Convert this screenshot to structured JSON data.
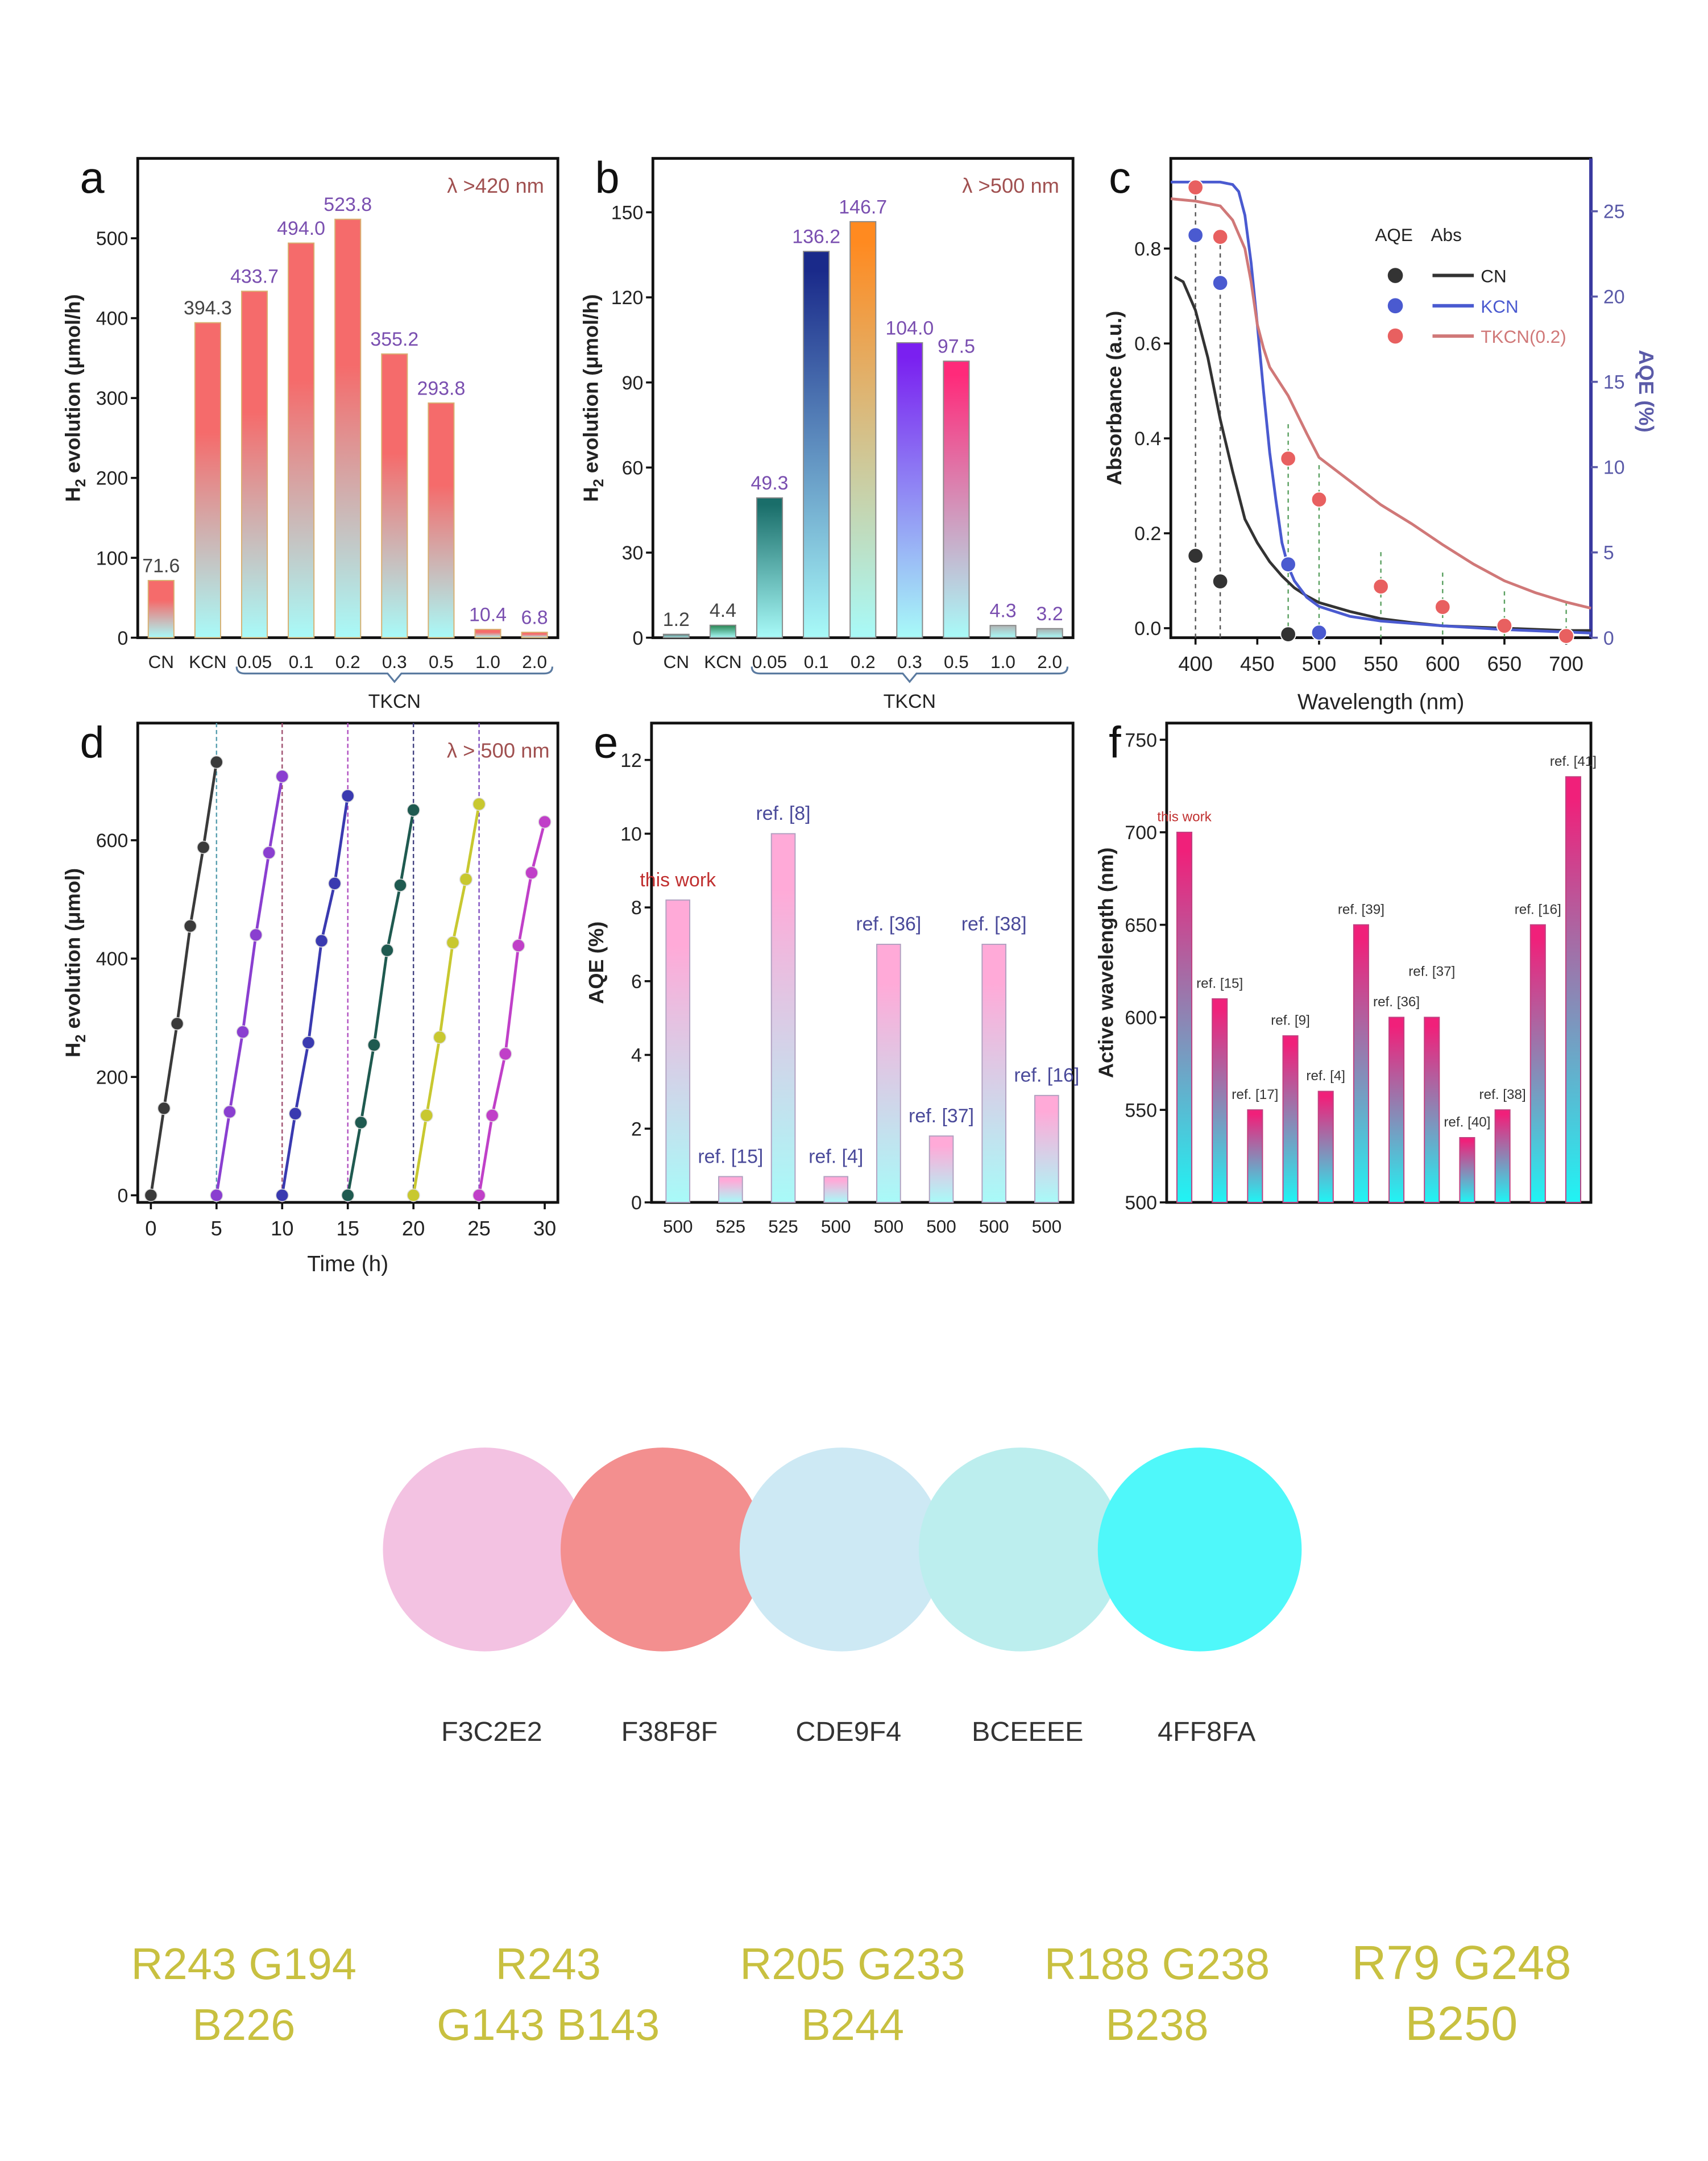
{
  "chart_data": [
    {
      "panel": "a",
      "type": "bar",
      "annotation": "λ >420 nm",
      "categories": [
        "CN",
        "KCN",
        "0.05",
        "0.1",
        "0.2",
        "0.3",
        "0.5",
        "1.0",
        "2.0"
      ],
      "values": [
        71.6,
        394.3,
        433.7,
        494.0,
        523.8,
        355.2,
        293.8,
        10.4,
        6.8
      ],
      "data_labels": [
        "71.6",
        "394.3",
        "433.7",
        "494.0",
        "523.8",
        "355.2",
        "293.8",
        "10.4",
        "6.8"
      ],
      "group_label": "TKCN",
      "ylabel": {
        "main": "H",
        "sub": "2",
        "rest": " evolution (μmol/h)"
      },
      "ylim": [
        0,
        600
      ],
      "yticks": [
        0,
        100,
        200,
        300,
        400,
        500
      ],
      "ytick_labels": [
        "0",
        "100",
        "200",
        "300",
        "400",
        "500"
      ],
      "bar_top_color": "#F56B6B",
      "bar_bottom_color": "#A8FAF8"
    },
    {
      "panel": "b",
      "type": "bar",
      "annotation": "λ >500 nm",
      "categories": [
        "CN",
        "KCN",
        "0.05",
        "0.1",
        "0.2",
        "0.3",
        "0.5",
        "1.0",
        "2.0"
      ],
      "values": [
        1.2,
        4.4,
        49.3,
        136.2,
        146.7,
        104.0,
        97.5,
        4.3,
        3.2
      ],
      "data_labels": [
        "1.2",
        "4.4",
        "49.3",
        "136.2",
        "146.7",
        "104.0",
        "97.5",
        "4.3",
        "3.2"
      ],
      "group_label": "TKCN",
      "ylabel": {
        "main": "H",
        "sub": "2",
        "rest": " evolution (μmol/h)"
      },
      "ylim": [
        0,
        169
      ],
      "yticks": [
        0,
        30,
        60,
        90,
        120,
        150
      ],
      "ytick_labels": [
        "0",
        "30",
        "60",
        "90",
        "120",
        "150"
      ],
      "bar_colors": [
        "#5A7070",
        "#2E8A5A",
        "#1A6E6A",
        "#1A2A8A",
        "#FF8A20",
        "#7A20F0",
        "#FF2A7A",
        "#B0B8B8",
        "#A8B0B0"
      ],
      "bar_bottom_color": "#A8FAF8"
    },
    {
      "panel": "c",
      "type": "line",
      "xlabel": "Wavelength (nm)",
      "ylabel": "Absorbance (a.u.)",
      "y2label": "AQE (%)",
      "xlim": [
        380,
        720
      ],
      "ylim": [
        -0.02,
        0.99
      ],
      "y2lim": [
        0,
        28.1
      ],
      "xticks": [
        400,
        450,
        500,
        550,
        600,
        650,
        700
      ],
      "xtick_labels": [
        "400",
        "450",
        "500",
        "550",
        "600",
        "650",
        "700"
      ],
      "yticks": [
        0,
        0.2,
        0.4,
        0.6,
        0.8
      ],
      "ytick_labels": [
        "0.0",
        "0.2",
        "0.4",
        "0.6",
        "0.8"
      ],
      "y2ticks": [
        0,
        5,
        10,
        15,
        20,
        25
      ],
      "y2tick_labels": [
        "0",
        "5",
        "10",
        "15",
        "20",
        "25"
      ],
      "legend": {
        "header_points": "AQE",
        "header_lines": "Abs",
        "placement": "top-right"
      },
      "series": [
        {
          "name": "CN",
          "color": "#333333",
          "abs": {
            "x": [
              383,
              390,
              400,
              410,
              420,
              430,
              440,
              450,
              460,
              470,
              480,
              490,
              500,
              525,
              550,
              575,
              600,
              650,
              700,
              720
            ],
            "y": [
              0.74,
              0.73,
              0.67,
              0.57,
              0.44,
              0.33,
              0.23,
              0.18,
              0.14,
              0.11,
              0.085,
              0.068,
              0.054,
              0.035,
              0.02,
              0.012,
              0.005,
              0.0,
              -0.005,
              -0.005
            ]
          },
          "aqe": {
            "x": [
              400,
              420,
              475
            ],
            "y": [
              4.8,
              3.3,
              0.2
            ]
          }
        },
        {
          "name": "KCN",
          "color": "#4A5AD0",
          "abs": {
            "x": [
              380,
              400,
              420,
              430,
              435,
              440,
              445,
              450,
              455,
              460,
              465,
              470,
              475,
              480,
              490,
              500,
              525,
              550,
              600,
              650,
              700,
              720
            ],
            "y": [
              0.94,
              0.94,
              0.94,
              0.935,
              0.92,
              0.87,
              0.77,
              0.64,
              0.5,
              0.37,
              0.27,
              0.18,
              0.13,
              0.1,
              0.065,
              0.046,
              0.025,
              0.015,
              0.005,
              -0.003,
              -0.008,
              -0.01
            ]
          },
          "aqe": {
            "x": [
              400,
              420,
              475,
              500
            ],
            "y": [
              23.6,
              20.8,
              4.3,
              0.3
            ]
          }
        },
        {
          "name": "TKCN(0.2)",
          "color": "#D07878",
          "abs": {
            "x": [
              380,
              400,
              420,
              430,
              440,
              445,
              450,
              455,
              460,
              475,
              490,
              500,
              525,
              550,
              575,
              600,
              625,
              650,
              675,
              700,
              720
            ],
            "y": [
              0.905,
              0.9,
              0.89,
              0.86,
              0.8,
              0.73,
              0.64,
              0.59,
              0.55,
              0.49,
              0.41,
              0.36,
              0.31,
              0.26,
              0.22,
              0.176,
              0.135,
              0.1,
              0.075,
              0.055,
              0.042
            ]
          },
          "aqe": {
            "x": [
              400,
              420,
              475,
              500,
              550,
              600,
              650,
              700
            ],
            "y": [
              26.4,
              23.5,
              10.5,
              8.1,
              3.0,
              1.8,
              0.7,
              0.1
            ]
          }
        }
      ]
    },
    {
      "panel": "d",
      "type": "line",
      "annotation": "λ > 500 nm",
      "xlabel": "Time (h)",
      "ylabel": {
        "main": "H",
        "sub": "2",
        "rest": " evolution (μmol)"
      },
      "xlim": [
        -1,
        31
      ],
      "ylim": [
        -12,
        798
      ],
      "xticks": [
        0,
        5,
        10,
        15,
        20,
        25,
        30
      ],
      "xtick_labels": [
        "0",
        "5",
        "10",
        "15",
        "20",
        "25",
        "30"
      ],
      "yticks": [
        0,
        200,
        400,
        600
      ],
      "ytick_labels": [
        "0",
        "200",
        "400",
        "600"
      ],
      "cycle_dividers": [
        5,
        10,
        15,
        20,
        25
      ],
      "series": [
        {
          "color": "#3A3A3A",
          "x": [
            0,
            1,
            2,
            3,
            4,
            5
          ],
          "y": [
            0,
            147,
            290,
            455,
            588,
            732
          ]
        },
        {
          "color": "#8A3FD0",
          "x": [
            5,
            6,
            7,
            8,
            9,
            10
          ],
          "y": [
            0,
            141,
            276,
            440,
            579,
            708
          ]
        },
        {
          "color": "#3A3AB0",
          "x": [
            10,
            11,
            12,
            13,
            14,
            15
          ],
          "y": [
            0,
            138,
            258,
            430,
            527,
            675
          ]
        },
        {
          "color": "#1F5A50",
          "x": [
            15,
            16,
            17,
            18,
            19,
            20
          ],
          "y": [
            0,
            123,
            254,
            414,
            524,
            651
          ]
        },
        {
          "color": "#C8C830",
          "x": [
            20,
            21,
            22,
            23,
            24,
            25
          ],
          "y": [
            0,
            135,
            267,
            427,
            534,
            661
          ]
        },
        {
          "color": "#C040C8",
          "x": [
            25,
            26,
            27,
            28,
            29,
            30
          ],
          "y": [
            0,
            135,
            239,
            422,
            545,
            631
          ]
        }
      ]
    },
    {
      "panel": "e",
      "type": "bar",
      "ylabel": "AQE (%)",
      "categories": [
        "500",
        "525",
        "525",
        "500",
        "500",
        "500",
        "500",
        "500"
      ],
      "values": [
        8.2,
        0.7,
        10,
        0.7,
        7,
        1.8,
        7,
        2.9
      ],
      "data_labels": [
        "this work",
        "ref. [15]",
        "ref. [8]",
        "ref. [4]",
        "ref. [36]",
        "ref. [37]",
        "ref. [38]",
        "ref. [16]"
      ],
      "ylim": [
        0,
        13
      ],
      "yticks": [
        0,
        2,
        4,
        6,
        8,
        10,
        12
      ],
      "ytick_labels": [
        "0",
        "2",
        "4",
        "6",
        "8",
        "10",
        "12"
      ],
      "bar_top_color": "#FFAAD8",
      "bar_bottom_color": "#A8FAF8"
    },
    {
      "panel": "f",
      "type": "bar",
      "ylabel": "Active wavelength (nm)",
      "categories": [
        "this work",
        "ref. [15]",
        "ref. [17]",
        "ref. [9]",
        "ref. [4]",
        "ref. [39]",
        "ref. [36]",
        "ref. [37]",
        "ref. [40]",
        "ref. [38]",
        "ref. [16]",
        "ref. [41]"
      ],
      "values": [
        700,
        610,
        550,
        590,
        560,
        650,
        600,
        600,
        535,
        550,
        650,
        730
      ],
      "data_labels": [
        "this work",
        "ref. [15]",
        "ref. [17]",
        "ref. [9]",
        "ref. [4]",
        "ref. [39]",
        "ref. [36]",
        "ref. [37]",
        "ref. [40]",
        "ref. [38]",
        "ref. [16]",
        "ref. [41]"
      ],
      "ylim": [
        500,
        759
      ],
      "yticks": [
        500,
        550,
        600,
        650,
        700,
        750
      ],
      "ytick_labels": [
        "500",
        "550",
        "600",
        "650",
        "700",
        "750"
      ],
      "bar_top_color": "#F0207A",
      "bar_bottom_color": "#20F4F4"
    }
  ],
  "palette": {
    "rgb_text_color": "#C8C040",
    "colors": [
      {
        "hex": "F3C2E2",
        "swatch": "#F3C2E2",
        "rgb_lines": [
          "R243 G194",
          "B226"
        ]
      },
      {
        "hex": "F38F8F",
        "swatch": "#F38F8F",
        "rgb_lines": [
          "R243",
          "G143 B143"
        ]
      },
      {
        "hex": "CDE9F4",
        "swatch": "#CDE9F4",
        "rgb_lines": [
          "R205 G233",
          "B244"
        ]
      },
      {
        "hex": "BCEEEE",
        "swatch": "#BCEEEE",
        "rgb_lines": [
          "R188 G238",
          "B238"
        ]
      },
      {
        "hex": "4FF8FA",
        "swatch": "#4FF8FA",
        "rgb_lines": [
          "R79 G248",
          "B250"
        ]
      }
    ]
  }
}
